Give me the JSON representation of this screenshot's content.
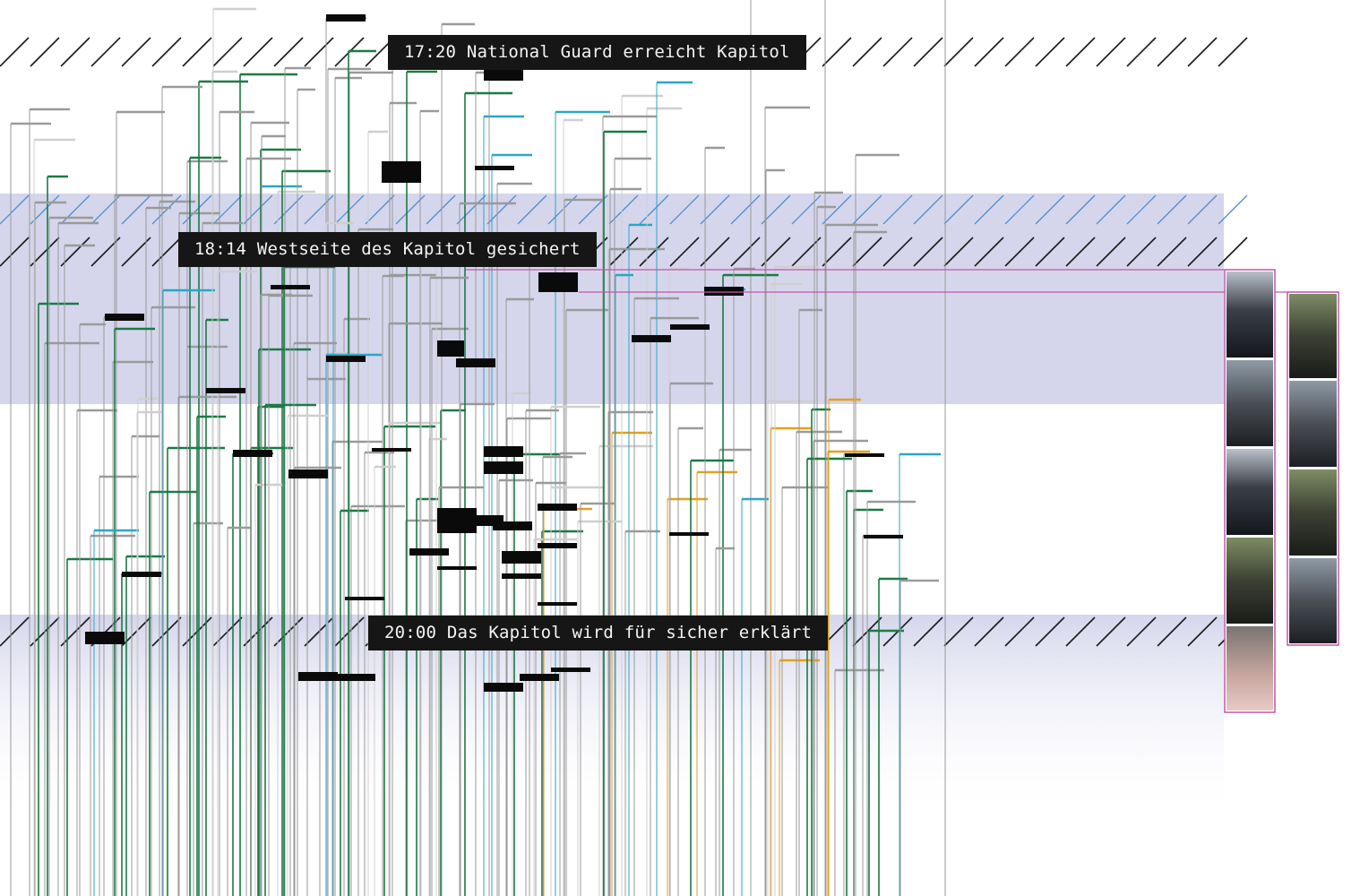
{
  "events": [
    {
      "label": "17:20 National Guard erreicht Kapitol"
    },
    {
      "label": "18:14 Westseite des Kapitol gesichert"
    },
    {
      "label": "20:00 Das Kapitol wird für sicher erklärt"
    }
  ],
  "colors": {
    "background": "#ffffff",
    "band": "#d5d6ec",
    "band_fade": "#dcddf0",
    "hatch_dark": "#1a1a1a",
    "hatch_blue": "#4f8fd2",
    "label_bg": "#161616",
    "label_text": "#f4f4f4",
    "line_gray": "#9a9a9a",
    "line_light": "#cfcfcf",
    "line_green": "#1b7a45",
    "line_cyan": "#2aa6c4",
    "line_orange": "#e3a21a",
    "frame_magenta": "#c257a6",
    "block_black": "#0a0a0a"
  }
}
